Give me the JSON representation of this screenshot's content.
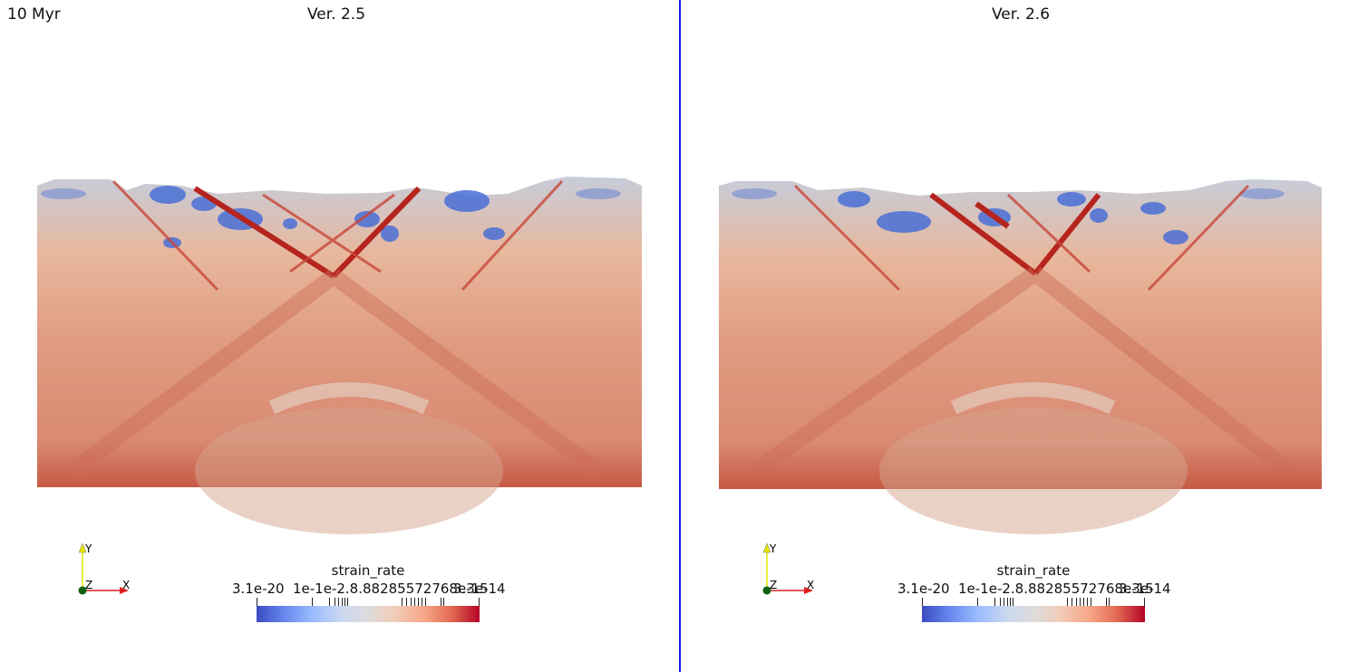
{
  "time_label": "10 Myr",
  "panes": [
    {
      "id": "left",
      "title": "Ver. 2.5"
    },
    {
      "id": "right",
      "title": "Ver. 2.6"
    }
  ],
  "colorbar": {
    "title": "strain_rate",
    "min_label": "3.1e-20",
    "max_label": "3.3e-14",
    "mid_labels": "1e-1e-2.8.88285572768e-15",
    "colormap": "Cool to Warm",
    "colors": [
      "#3b4cc0",
      "#dddcdc",
      "#b40426"
    ]
  },
  "axes": {
    "x": "X",
    "y": "Y",
    "z": "Z"
  },
  "colors": {
    "divider": "#1a1ae6",
    "x_axis": "#e02020",
    "y_axis": "#e6e600",
    "origin": "#106010"
  }
}
